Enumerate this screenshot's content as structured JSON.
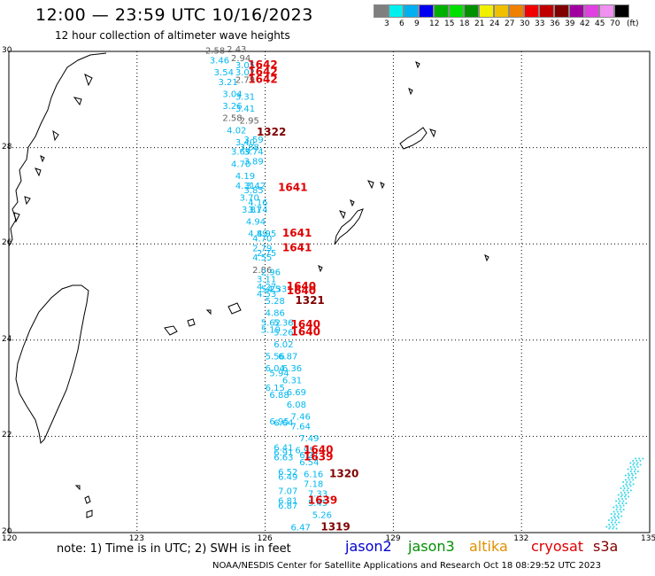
{
  "header": {
    "title": "12:00 — 23:59 UTC 10/16/2023",
    "subtitle": "12 hour collection of altimeter wave heights"
  },
  "colorbar": {
    "unit": "(ft)",
    "ticks": [
      "3",
      "6",
      "9",
      "12",
      "15",
      "18",
      "21",
      "24",
      "27",
      "30",
      "33",
      "36",
      "39",
      "42",
      "45",
      "70"
    ],
    "colors": [
      "#7f7f7f",
      "#00f0f0",
      "#00b0f0",
      "#0000f0",
      "#00b000",
      "#00e000",
      "#009000",
      "#f0f000",
      "#f0c000",
      "#f08000",
      "#f00000",
      "#c00000",
      "#800000",
      "#a000a0",
      "#e040e0",
      "#f090f0",
      "#000000"
    ]
  },
  "map": {
    "lon_ticks": [
      "120",
      "123",
      "126",
      "129",
      "132",
      "135"
    ],
    "lat_ticks": [
      "30",
      "28",
      "26",
      "24",
      "22",
      "20"
    ],
    "colors": {
      "swh": "#00b8f0",
      "swh_gray": "#606060",
      "pass": "#e00000",
      "pass_dark": "#800000",
      "swath_right": "#40d8e8"
    },
    "swh_labels": [
      {
        "t": "2.58",
        "lon": 124.6,
        "lat": 29.95,
        "c": "gray"
      },
      {
        "t": "2.43",
        "lon": 125.1,
        "lat": 29.98,
        "c": "gray"
      },
      {
        "t": "3.46",
        "lon": 124.7,
        "lat": 29.75,
        "c": "swh"
      },
      {
        "t": "2.94",
        "lon": 125.2,
        "lat": 29.8,
        "c": "gray"
      },
      {
        "t": "3.05",
        "lon": 125.3,
        "lat": 29.65,
        "c": "swh"
      },
      {
        "t": "3.54",
        "lon": 124.8,
        "lat": 29.5,
        "c": "swh"
      },
      {
        "t": "3.02",
        "lon": 125.3,
        "lat": 29.5,
        "c": "swh"
      },
      {
        "t": "3.21",
        "lon": 124.9,
        "lat": 29.3,
        "c": "swh"
      },
      {
        "t": "2.79",
        "lon": 125.3,
        "lat": 29.35,
        "c": "gray"
      },
      {
        "t": "3.04",
        "lon": 125.0,
        "lat": 29.05,
        "c": "swh"
      },
      {
        "t": "3.31",
        "lon": 125.3,
        "lat": 29.0,
        "c": "swh"
      },
      {
        "t": "3.26",
        "lon": 125.0,
        "lat": 28.8,
        "c": "swh"
      },
      {
        "t": "3.41",
        "lon": 125.3,
        "lat": 28.75,
        "c": "swh"
      },
      {
        "t": "2.58",
        "lon": 125.0,
        "lat": 28.55,
        "c": "gray"
      },
      {
        "t": "2.95",
        "lon": 125.4,
        "lat": 28.5,
        "c": "gray"
      },
      {
        "t": "4.02",
        "lon": 125.1,
        "lat": 28.3,
        "c": "swh"
      },
      {
        "t": "3.59",
        "lon": 125.5,
        "lat": 28.1,
        "c": "swh"
      },
      {
        "t": "3.40",
        "lon": 125.3,
        "lat": 28.05,
        "c": "swh"
      },
      {
        "t": "3.88",
        "lon": 125.4,
        "lat": 27.95,
        "c": "swh"
      },
      {
        "t": "3.69",
        "lon": 125.2,
        "lat": 27.85,
        "c": "swh"
      },
      {
        "t": "3.74",
        "lon": 125.5,
        "lat": 27.85,
        "c": "swh"
      },
      {
        "t": "4.70",
        "lon": 125.2,
        "lat": 27.6,
        "c": "swh"
      },
      {
        "t": "3.89",
        "lon": 125.5,
        "lat": 27.65,
        "c": "swh"
      },
      {
        "t": "4.19",
        "lon": 125.3,
        "lat": 27.35,
        "c": "swh"
      },
      {
        "t": "4.31",
        "lon": 125.3,
        "lat": 27.15,
        "c": "swh"
      },
      {
        "t": "3.42",
        "lon": 125.55,
        "lat": 27.15,
        "c": "swh"
      },
      {
        "t": "3.85",
        "lon": 125.5,
        "lat": 27.05,
        "c": "swh"
      },
      {
        "t": "3.70",
        "lon": 125.4,
        "lat": 26.9,
        "c": "swh"
      },
      {
        "t": "4.16",
        "lon": 125.6,
        "lat": 26.8,
        "c": "swh"
      },
      {
        "t": "3.81",
        "lon": 125.45,
        "lat": 26.65,
        "c": "swh"
      },
      {
        "t": "3.74",
        "lon": 125.6,
        "lat": 26.65,
        "c": "swh"
      },
      {
        "t": "4.94",
        "lon": 125.55,
        "lat": 26.4,
        "c": "swh"
      },
      {
        "t": "4.89",
        "lon": 125.6,
        "lat": 26.15,
        "c": "swh"
      },
      {
        "t": "4.95",
        "lon": 125.8,
        "lat": 26.15,
        "c": "swh"
      },
      {
        "t": "4.70",
        "lon": 125.7,
        "lat": 26.05,
        "c": "swh"
      },
      {
        "t": "2.79",
        "lon": 125.7,
        "lat": 25.85,
        "c": "swh"
      },
      {
        "t": "2.75",
        "lon": 125.8,
        "lat": 25.75,
        "c": "swh"
      },
      {
        "t": "4.55",
        "lon": 125.7,
        "lat": 25.65,
        "c": "swh"
      },
      {
        "t": "2.86",
        "lon": 125.7,
        "lat": 25.4,
        "c": "gray"
      },
      {
        "t": "2.96",
        "lon": 125.9,
        "lat": 25.35,
        "c": "swh"
      },
      {
        "t": "3.11",
        "lon": 125.8,
        "lat": 25.2,
        "c": "swh"
      },
      {
        "t": "4.27",
        "lon": 125.8,
        "lat": 25.05,
        "c": "swh"
      },
      {
        "t": "5.25",
        "lon": 125.9,
        "lat": 25.0,
        "c": "swh"
      },
      {
        "t": "4.33",
        "lon": 126.05,
        "lat": 25.0,
        "c": "swh"
      },
      {
        "t": "4.53",
        "lon": 125.8,
        "lat": 24.9,
        "c": "swh"
      },
      {
        "t": "5.28",
        "lon": 126.0,
        "lat": 24.75,
        "c": "swh"
      },
      {
        "t": "4.86",
        "lon": 126.0,
        "lat": 24.5,
        "c": "swh"
      },
      {
        "t": "5.62",
        "lon": 125.9,
        "lat": 24.3,
        "c": "swh"
      },
      {
        "t": "5.36",
        "lon": 126.2,
        "lat": 24.3,
        "c": "swh"
      },
      {
        "t": "5.19",
        "lon": 125.9,
        "lat": 24.15,
        "c": "swh"
      },
      {
        "t": "5.26",
        "lon": 126.2,
        "lat": 24.1,
        "c": "swh"
      },
      {
        "t": "6.02",
        "lon": 126.2,
        "lat": 23.85,
        "c": "swh"
      },
      {
        "t": "5.56",
        "lon": 126.0,
        "lat": 23.6,
        "c": "swh"
      },
      {
        "t": "6.87",
        "lon": 126.3,
        "lat": 23.6,
        "c": "swh"
      },
      {
        "t": "6.04",
        "lon": 126.0,
        "lat": 23.35,
        "c": "swh"
      },
      {
        "t": "6.36",
        "lon": 126.4,
        "lat": 23.35,
        "c": "swh"
      },
      {
        "t": "5.94",
        "lon": 126.1,
        "lat": 23.25,
        "c": "swh"
      },
      {
        "t": "6.31",
        "lon": 126.4,
        "lat": 23.1,
        "c": "swh"
      },
      {
        "t": "6.15",
        "lon": 126.0,
        "lat": 22.95,
        "c": "swh"
      },
      {
        "t": "6.69",
        "lon": 126.5,
        "lat": 22.85,
        "c": "swh"
      },
      {
        "t": "6.88",
        "lon": 126.1,
        "lat": 22.8,
        "c": "swh"
      },
      {
        "t": "6.08",
        "lon": 126.5,
        "lat": 22.6,
        "c": "swh"
      },
      {
        "t": "7.46",
        "lon": 126.6,
        "lat": 22.35,
        "c": "swh"
      },
      {
        "t": "6.95",
        "lon": 126.1,
        "lat": 22.25,
        "c": "swh"
      },
      {
        "t": "6.64",
        "lon": 126.2,
        "lat": 22.22,
        "c": "swh"
      },
      {
        "t": "7.64",
        "lon": 126.6,
        "lat": 22.15,
        "c": "swh"
      },
      {
        "t": "6.41",
        "lon": 126.2,
        "lat": 21.7,
        "c": "swh"
      },
      {
        "t": "7.49",
        "lon": 126.8,
        "lat": 21.9,
        "c": "swh"
      },
      {
        "t": "6.91",
        "lon": 126.2,
        "lat": 21.6,
        "c": "swh"
      },
      {
        "t": "6.95",
        "lon": 126.7,
        "lat": 21.65,
        "c": "swh"
      },
      {
        "t": "6.63",
        "lon": 126.2,
        "lat": 21.5,
        "c": "swh"
      },
      {
        "t": "6.21",
        "lon": 126.8,
        "lat": 21.55,
        "c": "swh"
      },
      {
        "t": "6.54",
        "lon": 126.8,
        "lat": 21.4,
        "c": "swh"
      },
      {
        "t": "6.52",
        "lon": 126.3,
        "lat": 21.2,
        "c": "swh"
      },
      {
        "t": "6.16",
        "lon": 126.9,
        "lat": 21.15,
        "c": "swh"
      },
      {
        "t": "6.49",
        "lon": 126.3,
        "lat": 21.1,
        "c": "swh"
      },
      {
        "t": "7.18",
        "lon": 126.9,
        "lat": 20.95,
        "c": "swh"
      },
      {
        "t": "7.07",
        "lon": 126.3,
        "lat": 20.8,
        "c": "swh"
      },
      {
        "t": "7.33",
        "lon": 127.0,
        "lat": 20.75,
        "c": "swh"
      },
      {
        "t": "6.81",
        "lon": 126.3,
        "lat": 20.6,
        "c": "swh"
      },
      {
        "t": "5.45",
        "lon": 127.0,
        "lat": 20.55,
        "c": "swh"
      },
      {
        "t": "6.87",
        "lon": 126.3,
        "lat": 20.5,
        "c": "swh"
      },
      {
        "t": "5.26",
        "lon": 127.1,
        "lat": 20.3,
        "c": "swh"
      },
      {
        "t": "6.47",
        "lon": 126.6,
        "lat": 20.05,
        "c": "swh"
      }
    ],
    "pass_labels": [
      {
        "t": "1642",
        "lon": 125.6,
        "lat": 29.65,
        "c": "pass"
      },
      {
        "t": "1642",
        "lon": 125.6,
        "lat": 29.5,
        "c": "pass"
      },
      {
        "t": "1642",
        "lon": 125.6,
        "lat": 29.35,
        "c": "pass"
      },
      {
        "t": "1322",
        "lon": 125.8,
        "lat": 28.25,
        "c": "pass_dark"
      },
      {
        "t": "1641",
        "lon": 126.3,
        "lat": 27.1,
        "c": "pass"
      },
      {
        "t": "1641",
        "lon": 126.4,
        "lat": 26.15,
        "c": "pass"
      },
      {
        "t": "1641",
        "lon": 126.4,
        "lat": 25.85,
        "c": "pass"
      },
      {
        "t": "1640",
        "lon": 126.5,
        "lat": 25.05,
        "c": "pass"
      },
      {
        "t": "1640",
        "lon": 126.5,
        "lat": 24.95,
        "c": "pass"
      },
      {
        "t": "1321",
        "lon": 126.7,
        "lat": 24.75,
        "c": "pass_dark"
      },
      {
        "t": "1640",
        "lon": 126.6,
        "lat": 24.25,
        "c": "pass"
      },
      {
        "t": "1640",
        "lon": 126.6,
        "lat": 24.1,
        "c": "pass"
      },
      {
        "t": "1640",
        "lon": 126.9,
        "lat": 21.65,
        "c": "pass"
      },
      {
        "t": "1639",
        "lon": 126.9,
        "lat": 21.5,
        "c": "pass"
      },
      {
        "t": "1320",
        "lon": 127.5,
        "lat": 21.15,
        "c": "pass_dark"
      },
      {
        "t": "1639",
        "lon": 127.0,
        "lat": 20.6,
        "c": "pass"
      },
      {
        "t": "1319",
        "lon": 127.3,
        "lat": 20.05,
        "c": "pass_dark"
      }
    ]
  },
  "note": "note:  1) Time is in UTC;  2) SWH is in feet",
  "missions": [
    {
      "name": "jason2",
      "color": "#0000d0"
    },
    {
      "name": "jason3",
      "color": "#009000"
    },
    {
      "name": "altika",
      "color": "#e09000"
    },
    {
      "name": "cryosat",
      "color": "#e00000"
    },
    {
      "name": "s3a",
      "color": "#800000"
    }
  ],
  "footer": "NOAA/NESDIS Center for Satellite Applications and Research    Oct 18 08:29:52 UTC 2023"
}
